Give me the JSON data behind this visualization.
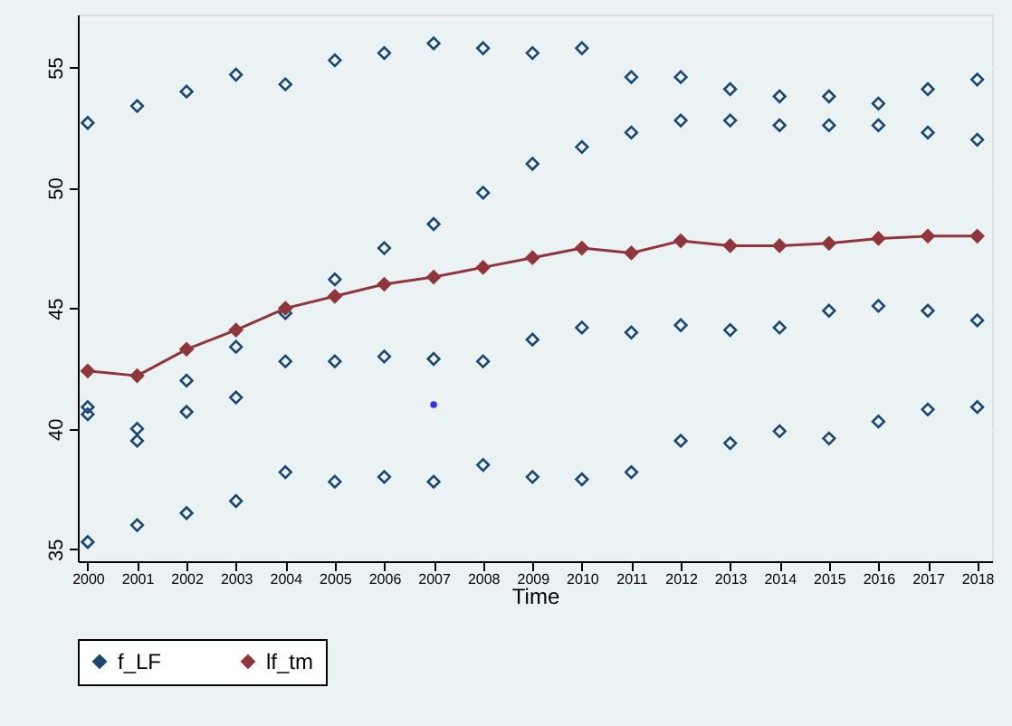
{
  "chart_data": {
    "type": "scatter",
    "xlabel": "Time",
    "xlim": [
      1999.8,
      2018.3
    ],
    "xticks": [
      2000,
      2001,
      2002,
      2003,
      2004,
      2005,
      2006,
      2007,
      2008,
      2009,
      2010,
      2011,
      2012,
      2013,
      2014,
      2015,
      2016,
      2017,
      2018
    ],
    "ylim": [
      34.5,
      57.2
    ],
    "yticks": [
      35,
      40,
      45,
      50,
      55
    ],
    "grid": "y",
    "legend": "bottom",
    "series": [
      {
        "name": "f_LF",
        "marker": "diamond",
        "color": "#1a476f",
        "x": [
          2000,
          2000,
          2000,
          2000,
          2001,
          2001,
          2001,
          2001,
          2002,
          2002,
          2002,
          2002,
          2003,
          2003,
          2003,
          2003,
          2004,
          2004,
          2004,
          2004,
          2005,
          2005,
          2005,
          2005,
          2006,
          2006,
          2006,
          2006,
          2007,
          2007,
          2007,
          2007,
          2008,
          2008,
          2008,
          2008,
          2009,
          2009,
          2009,
          2009,
          2010,
          2010,
          2010,
          2010,
          2011,
          2011,
          2011,
          2011,
          2012,
          2012,
          2012,
          2012,
          2013,
          2013,
          2013,
          2013,
          2014,
          2014,
          2014,
          2014,
          2015,
          2015,
          2015,
          2015,
          2016,
          2016,
          2016,
          2016,
          2017,
          2017,
          2017,
          2017,
          2018,
          2018,
          2018,
          2018
        ],
        "values": [
          52.7,
          40.9,
          40.6,
          35.3,
          53.4,
          40.0,
          39.5,
          36.0,
          54.0,
          42.0,
          40.7,
          36.5,
          54.7,
          43.4,
          41.3,
          37.0,
          54.3,
          44.8,
          42.8,
          38.2,
          55.3,
          46.2,
          42.8,
          37.8,
          55.6,
          47.5,
          43.0,
          38.0,
          56.0,
          48.5,
          42.9,
          37.8,
          55.8,
          49.8,
          42.8,
          38.5,
          55.6,
          51.0,
          43.7,
          38.0,
          55.8,
          51.7,
          44.2,
          37.9,
          54.6,
          52.3,
          44.0,
          38.2,
          54.6,
          52.8,
          44.3,
          39.5,
          54.1,
          52.8,
          44.1,
          39.4,
          53.8,
          52.6,
          44.2,
          39.9,
          53.8,
          52.6,
          44.9,
          39.6,
          53.5,
          52.6,
          45.1,
          40.3,
          54.1,
          52.3,
          44.9,
          40.8,
          54.5,
          52.0,
          44.5,
          40.9
        ]
      },
      {
        "marker": "circle",
        "color": "#3030ff",
        "x": [
          2007
        ],
        "values": [
          41.0
        ]
      },
      {
        "name": "lf_tm",
        "type": "line",
        "marker": "diamond",
        "line_style": "solid",
        "color": "#90353b",
        "x": [
          2000,
          2001,
          2002,
          2003,
          2004,
          2005,
          2006,
          2007,
          2008,
          2009,
          2010,
          2011,
          2012,
          2013,
          2014,
          2015,
          2016,
          2017,
          2018
        ],
        "values": [
          42.4,
          42.2,
          43.3,
          44.1,
          45.0,
          45.5,
          46.0,
          46.3,
          46.7,
          47.1,
          47.5,
          47.3,
          47.8,
          47.6,
          47.6,
          47.7,
          47.9,
          48.0,
          48.0
        ]
      }
    ]
  }
}
